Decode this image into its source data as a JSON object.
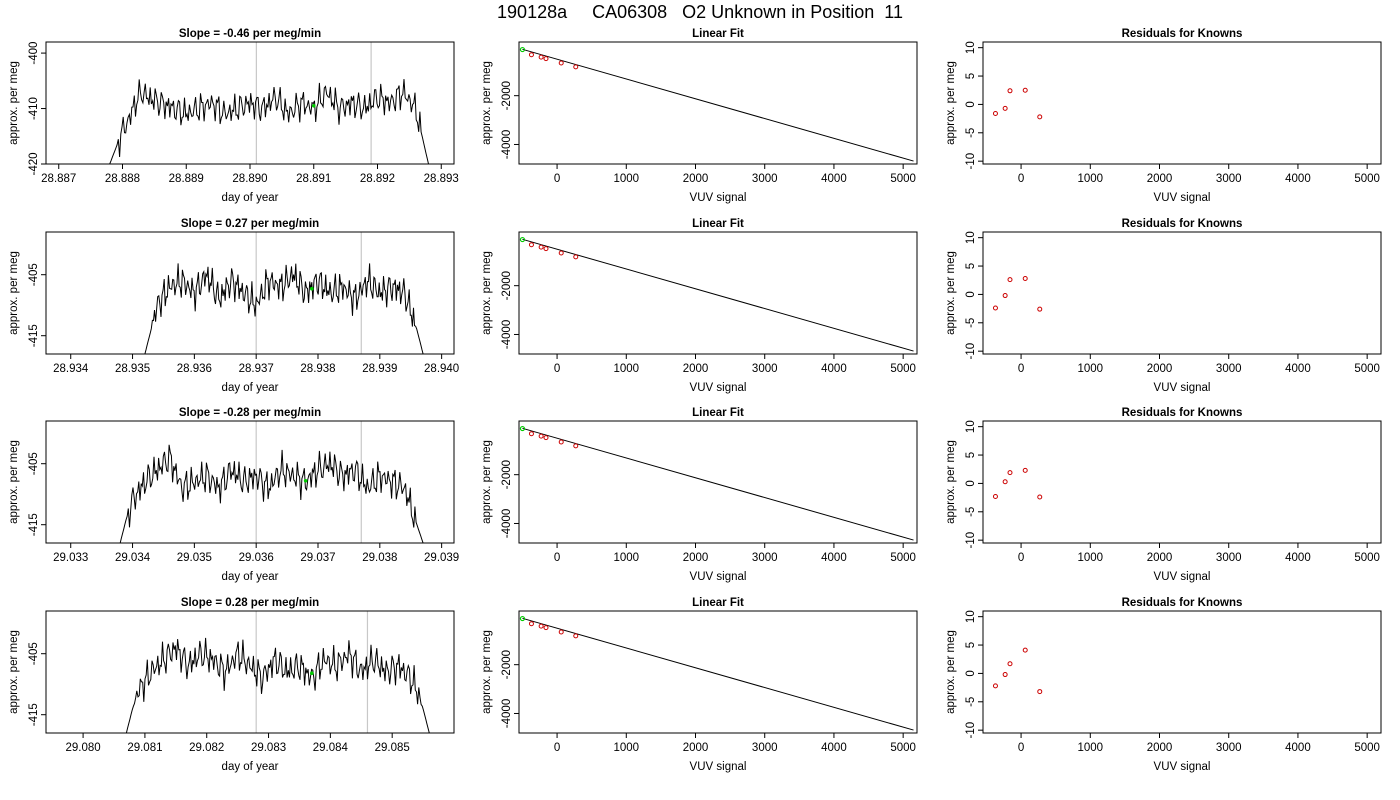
{
  "title": "190128a     CA06308   O2 Unknown in Position  11",
  "colors": {
    "line": "#000000",
    "known": "#cc0000",
    "unknown": "#00cc00",
    "marker": "#c8c8c8"
  },
  "chart_data": [
    {
      "panel": "time-1",
      "type": "line",
      "title": "Slope =  -0.46  per meg/min",
      "xlabel": "day of year",
      "ylabel": "approx. per meg",
      "xlim": [
        28.8868,
        28.8932
      ],
      "ylim": [
        -420,
        -398
      ],
      "xticks": [
        "28.887",
        "28.888",
        "28.889",
        "28.890",
        "28.891",
        "28.892",
        "28.893"
      ],
      "yticks": [
        "-400",
        "-410",
        "-420"
      ],
      "markers": [
        28.8901,
        28.8919
      ],
      "series_start": 28.8878,
      "series_end": 28.8928,
      "x": [
        28.8878,
        28.8879,
        28.888,
        28.8881,
        28.8882,
        28.8883,
        28.8884,
        28.8886,
        28.8888,
        28.889,
        28.8892,
        28.8894,
        28.8896,
        28.8898,
        28.89,
        28.8902,
        28.8904,
        28.8906,
        28.8908,
        28.891,
        28.8912,
        28.8914,
        28.8916,
        28.8918,
        28.892,
        28.8922,
        28.8924,
        28.8926,
        28.8927,
        28.8928
      ],
      "y": [
        -420,
        -417,
        -414,
        -412,
        -409,
        -407,
        -408,
        -409,
        -410,
        -411,
        -410,
        -409,
        -411,
        -410,
        -409,
        -410,
        -408,
        -411,
        -409,
        -410,
        -407,
        -410,
        -409,
        -410,
        -408,
        -409,
        -407,
        -410,
        -415,
        -420
      ],
      "unknown_point": {
        "x": 28.891,
        "y": -409.5
      }
    },
    {
      "panel": "fit-1",
      "type": "scatter+line",
      "title": "Linear Fit",
      "xlabel": "VUV signal",
      "ylabel": "approx. per meg",
      "xlim": [
        -550,
        5200
      ],
      "ylim": [
        -4800,
        200
      ],
      "xticks": [
        "0",
        "1000",
        "2000",
        "3000",
        "4000",
        "5000"
      ],
      "yticks": [
        "-2000",
        "-4000"
      ],
      "fit_line": {
        "x": [
          -500,
          5150
        ],
        "y": [
          -100,
          -4680
        ]
      },
      "knowns": {
        "x": [
          -370,
          -230,
          -160,
          60,
          270
        ],
        "y": [
          -320,
          -420,
          -480,
          -660,
          -820
        ]
      },
      "unknown_point": {
        "x": -500,
        "y": -110
      }
    },
    {
      "panel": "resid-1",
      "type": "scatter",
      "title": "Residuals for Knowns",
      "xlabel": "VUV signal",
      "ylabel": "approx. per meg",
      "xlim": [
        -550,
        5200
      ],
      "ylim": [
        -10.5,
        11
      ],
      "xticks": [
        "0",
        "1000",
        "2000",
        "3000",
        "4000",
        "5000"
      ],
      "yticks": [
        "10",
        "5",
        "0",
        "-5",
        "-10"
      ],
      "x": [
        -370,
        -230,
        -160,
        60,
        270
      ],
      "y": [
        -1.6,
        -0.7,
        2.4,
        2.5,
        -2.2
      ]
    },
    {
      "panel": "time-2",
      "type": "line",
      "title": "Slope =  0.27  per meg/min",
      "xlabel": "day of year",
      "ylabel": "approx. per meg",
      "xlim": [
        28.9336,
        28.9402
      ],
      "ylim": [
        -418,
        -398
      ],
      "xticks": [
        "28.934",
        "28.935",
        "28.936",
        "28.937",
        "28.938",
        "28.939",
        "28.940"
      ],
      "yticks": [
        "-405",
        "-415"
      ],
      "markers": [
        28.937,
        28.9387
      ],
      "series_start": 28.9352,
      "series_end": 28.9397,
      "x": [
        28.9352,
        28.9353,
        28.9354,
        28.9356,
        28.9358,
        28.936,
        28.9362,
        28.9364,
        28.9366,
        28.9368,
        28.937,
        28.9372,
        28.9374,
        28.9376,
        28.9378,
        28.938,
        28.9382,
        28.9384,
        28.9386,
        28.9388,
        28.939,
        28.9392,
        28.9394,
        28.9395,
        28.9396,
        28.9397
      ],
      "y": [
        -418,
        -414,
        -410,
        -407,
        -406,
        -408,
        -405,
        -409,
        -406,
        -408,
        -410,
        -406,
        -407,
        -405,
        -408,
        -406,
        -408,
        -407,
        -409,
        -406,
        -408,
        -407,
        -408,
        -411,
        -414,
        -418
      ],
      "unknown_point": {
        "x": 28.9379,
        "y": -407.3
      }
    },
    {
      "panel": "fit-2",
      "type": "scatter+line",
      "title": "Linear Fit",
      "xlabel": "VUV signal",
      "ylabel": "approx. per meg",
      "xlim": [
        -550,
        5200
      ],
      "ylim": [
        -4800,
        200
      ],
      "xticks": [
        "0",
        "1000",
        "2000",
        "3000",
        "4000",
        "5000"
      ],
      "yticks": [
        "-2000",
        "-4000"
      ],
      "fit_line": {
        "x": [
          -500,
          5150
        ],
        "y": [
          -100,
          -4680
        ]
      },
      "knowns": {
        "x": [
          -370,
          -230,
          -160,
          60,
          270
        ],
        "y": [
          -320,
          -420,
          -480,
          -660,
          -820
        ]
      },
      "unknown_point": {
        "x": -500,
        "y": -110
      }
    },
    {
      "panel": "resid-2",
      "type": "scatter",
      "title": "Residuals for Knowns",
      "xlabel": "VUV signal",
      "ylabel": "approx. per meg",
      "xlim": [
        -550,
        5200
      ],
      "ylim": [
        -10.5,
        11
      ],
      "xticks": [
        "0",
        "1000",
        "2000",
        "3000",
        "4000",
        "5000"
      ],
      "yticks": [
        "10",
        "5",
        "0",
        "-5",
        "-10"
      ],
      "x": [
        -370,
        -230,
        -160,
        60,
        270
      ],
      "y": [
        -2.4,
        -0.2,
        2.6,
        2.8,
        -2.6
      ]
    },
    {
      "panel": "time-3",
      "type": "line",
      "title": "Slope =  -0.28  per meg/min",
      "xlabel": "day of year",
      "ylabel": "approx. per meg",
      "xlim": [
        29.0326,
        29.0392
      ],
      "ylim": [
        -418,
        -398
      ],
      "xticks": [
        "29.033",
        "29.034",
        "29.035",
        "29.036",
        "29.037",
        "29.038",
        "29.039"
      ],
      "yticks": [
        "-405",
        "-415"
      ],
      "markers": [
        29.036,
        29.0377
      ],
      "series_start": 29.0338,
      "series_end": 29.0387,
      "x": [
        29.0338,
        29.0339,
        29.034,
        29.0342,
        29.0344,
        29.0346,
        29.0348,
        29.035,
        29.0352,
        29.0354,
        29.0356,
        29.0358,
        29.036,
        29.0362,
        29.0364,
        29.0366,
        29.0368,
        29.037,
        29.0372,
        29.0374,
        29.0376,
        29.0378,
        29.038,
        29.0382,
        29.0384,
        29.0385,
        29.0386,
        29.0387
      ],
      "y": [
        -418,
        -414,
        -411,
        -408,
        -406,
        -404,
        -409,
        -408,
        -407,
        -409,
        -406,
        -408,
        -407,
        -409,
        -406,
        -407,
        -408,
        -406,
        -405,
        -407,
        -406,
        -409,
        -407,
        -408,
        -409,
        -412,
        -415,
        -418
      ],
      "unknown_point": {
        "x": 29.0368,
        "y": -407.8
      }
    },
    {
      "panel": "fit-3",
      "type": "scatter+line",
      "title": "Linear Fit",
      "xlabel": "VUV signal",
      "ylabel": "approx. per meg",
      "xlim": [
        -550,
        5200
      ],
      "ylim": [
        -4800,
        200
      ],
      "xticks": [
        "0",
        "1000",
        "2000",
        "3000",
        "4000",
        "5000"
      ],
      "yticks": [
        "-2000",
        "-4000"
      ],
      "fit_line": {
        "x": [
          -500,
          5150
        ],
        "y": [
          -100,
          -4680
        ]
      },
      "knowns": {
        "x": [
          -370,
          -230,
          -160,
          60,
          270
        ],
        "y": [
          -320,
          -420,
          -480,
          -660,
          -820
        ]
      },
      "unknown_point": {
        "x": -500,
        "y": -110
      }
    },
    {
      "panel": "resid-3",
      "type": "scatter",
      "title": "Residuals for Knowns",
      "xlabel": "VUV signal",
      "ylabel": "approx. per meg",
      "xlim": [
        -550,
        5200
      ],
      "ylim": [
        -10.5,
        11
      ],
      "xticks": [
        "0",
        "1000",
        "2000",
        "3000",
        "4000",
        "5000"
      ],
      "yticks": [
        "10",
        "5",
        "0",
        "-5",
        "-10"
      ],
      "x": [
        -370,
        -230,
        -160,
        60,
        270
      ],
      "y": [
        -2.3,
        0.3,
        1.9,
        2.3,
        -2.4
      ]
    },
    {
      "panel": "time-4",
      "type": "line",
      "title": "Slope =  0.28  per meg/min",
      "xlabel": "day of year",
      "ylabel": "approx. per meg",
      "xlim": [
        29.0794,
        29.086
      ],
      "ylim": [
        -418,
        -398
      ],
      "xticks": [
        "29.080",
        "29.081",
        "29.082",
        "29.083",
        "29.084",
        "29.085"
      ],
      "yticks": [
        "-405",
        "-415"
      ],
      "markers": [
        29.0828,
        29.0846
      ],
      "series_start": 29.0807,
      "series_end": 29.0856,
      "x": [
        29.0807,
        29.0808,
        29.0809,
        29.0811,
        29.0813,
        29.0815,
        29.0817,
        29.0819,
        29.0821,
        29.0823,
        29.0825,
        29.0827,
        29.0829,
        29.0831,
        29.0833,
        29.0835,
        29.0837,
        29.0839,
        29.0841,
        29.0843,
        29.0845,
        29.0847,
        29.0849,
        29.0851,
        29.0853,
        29.0854,
        29.0855,
        29.0856
      ],
      "y": [
        -418,
        -414,
        -411,
        -408,
        -406,
        -404,
        -407,
        -405,
        -406,
        -408,
        -405,
        -407,
        -409,
        -406,
        -408,
        -407,
        -409,
        -406,
        -407,
        -405,
        -408,
        -406,
        -408,
        -407,
        -409,
        -411,
        -414,
        -418
      ],
      "unknown_point": {
        "x": 29.0837,
        "y": -408.2
      }
    },
    {
      "panel": "fit-4",
      "type": "scatter+line",
      "title": "Linear Fit",
      "xlabel": "VUV signal",
      "ylabel": "approx. per meg",
      "xlim": [
        -550,
        5200
      ],
      "ylim": [
        -4800,
        200
      ],
      "xticks": [
        "0",
        "1000",
        "2000",
        "3000",
        "4000",
        "5000"
      ],
      "yticks": [
        "-2000",
        "-4000"
      ],
      "fit_line": {
        "x": [
          -500,
          5150
        ],
        "y": [
          -100,
          -4680
        ]
      },
      "knowns": {
        "x": [
          -370,
          -230,
          -160,
          60,
          270
        ],
        "y": [
          -320,
          -420,
          -480,
          -660,
          -820
        ]
      },
      "unknown_point": {
        "x": -500,
        "y": -110
      }
    },
    {
      "panel": "resid-4",
      "type": "scatter",
      "title": "Residuals for Knowns",
      "xlabel": "VUV signal",
      "ylabel": "approx. per meg",
      "xlim": [
        -550,
        5200
      ],
      "ylim": [
        -10.5,
        11
      ],
      "xticks": [
        "0",
        "1000",
        "2000",
        "3000",
        "4000",
        "5000"
      ],
      "yticks": [
        "10",
        "5",
        "0",
        "-5",
        "-10"
      ],
      "x": [
        -370,
        -230,
        -160,
        60,
        270
      ],
      "y": [
        -2.2,
        -0.2,
        1.7,
        4.1,
        -3.2
      ]
    }
  ]
}
